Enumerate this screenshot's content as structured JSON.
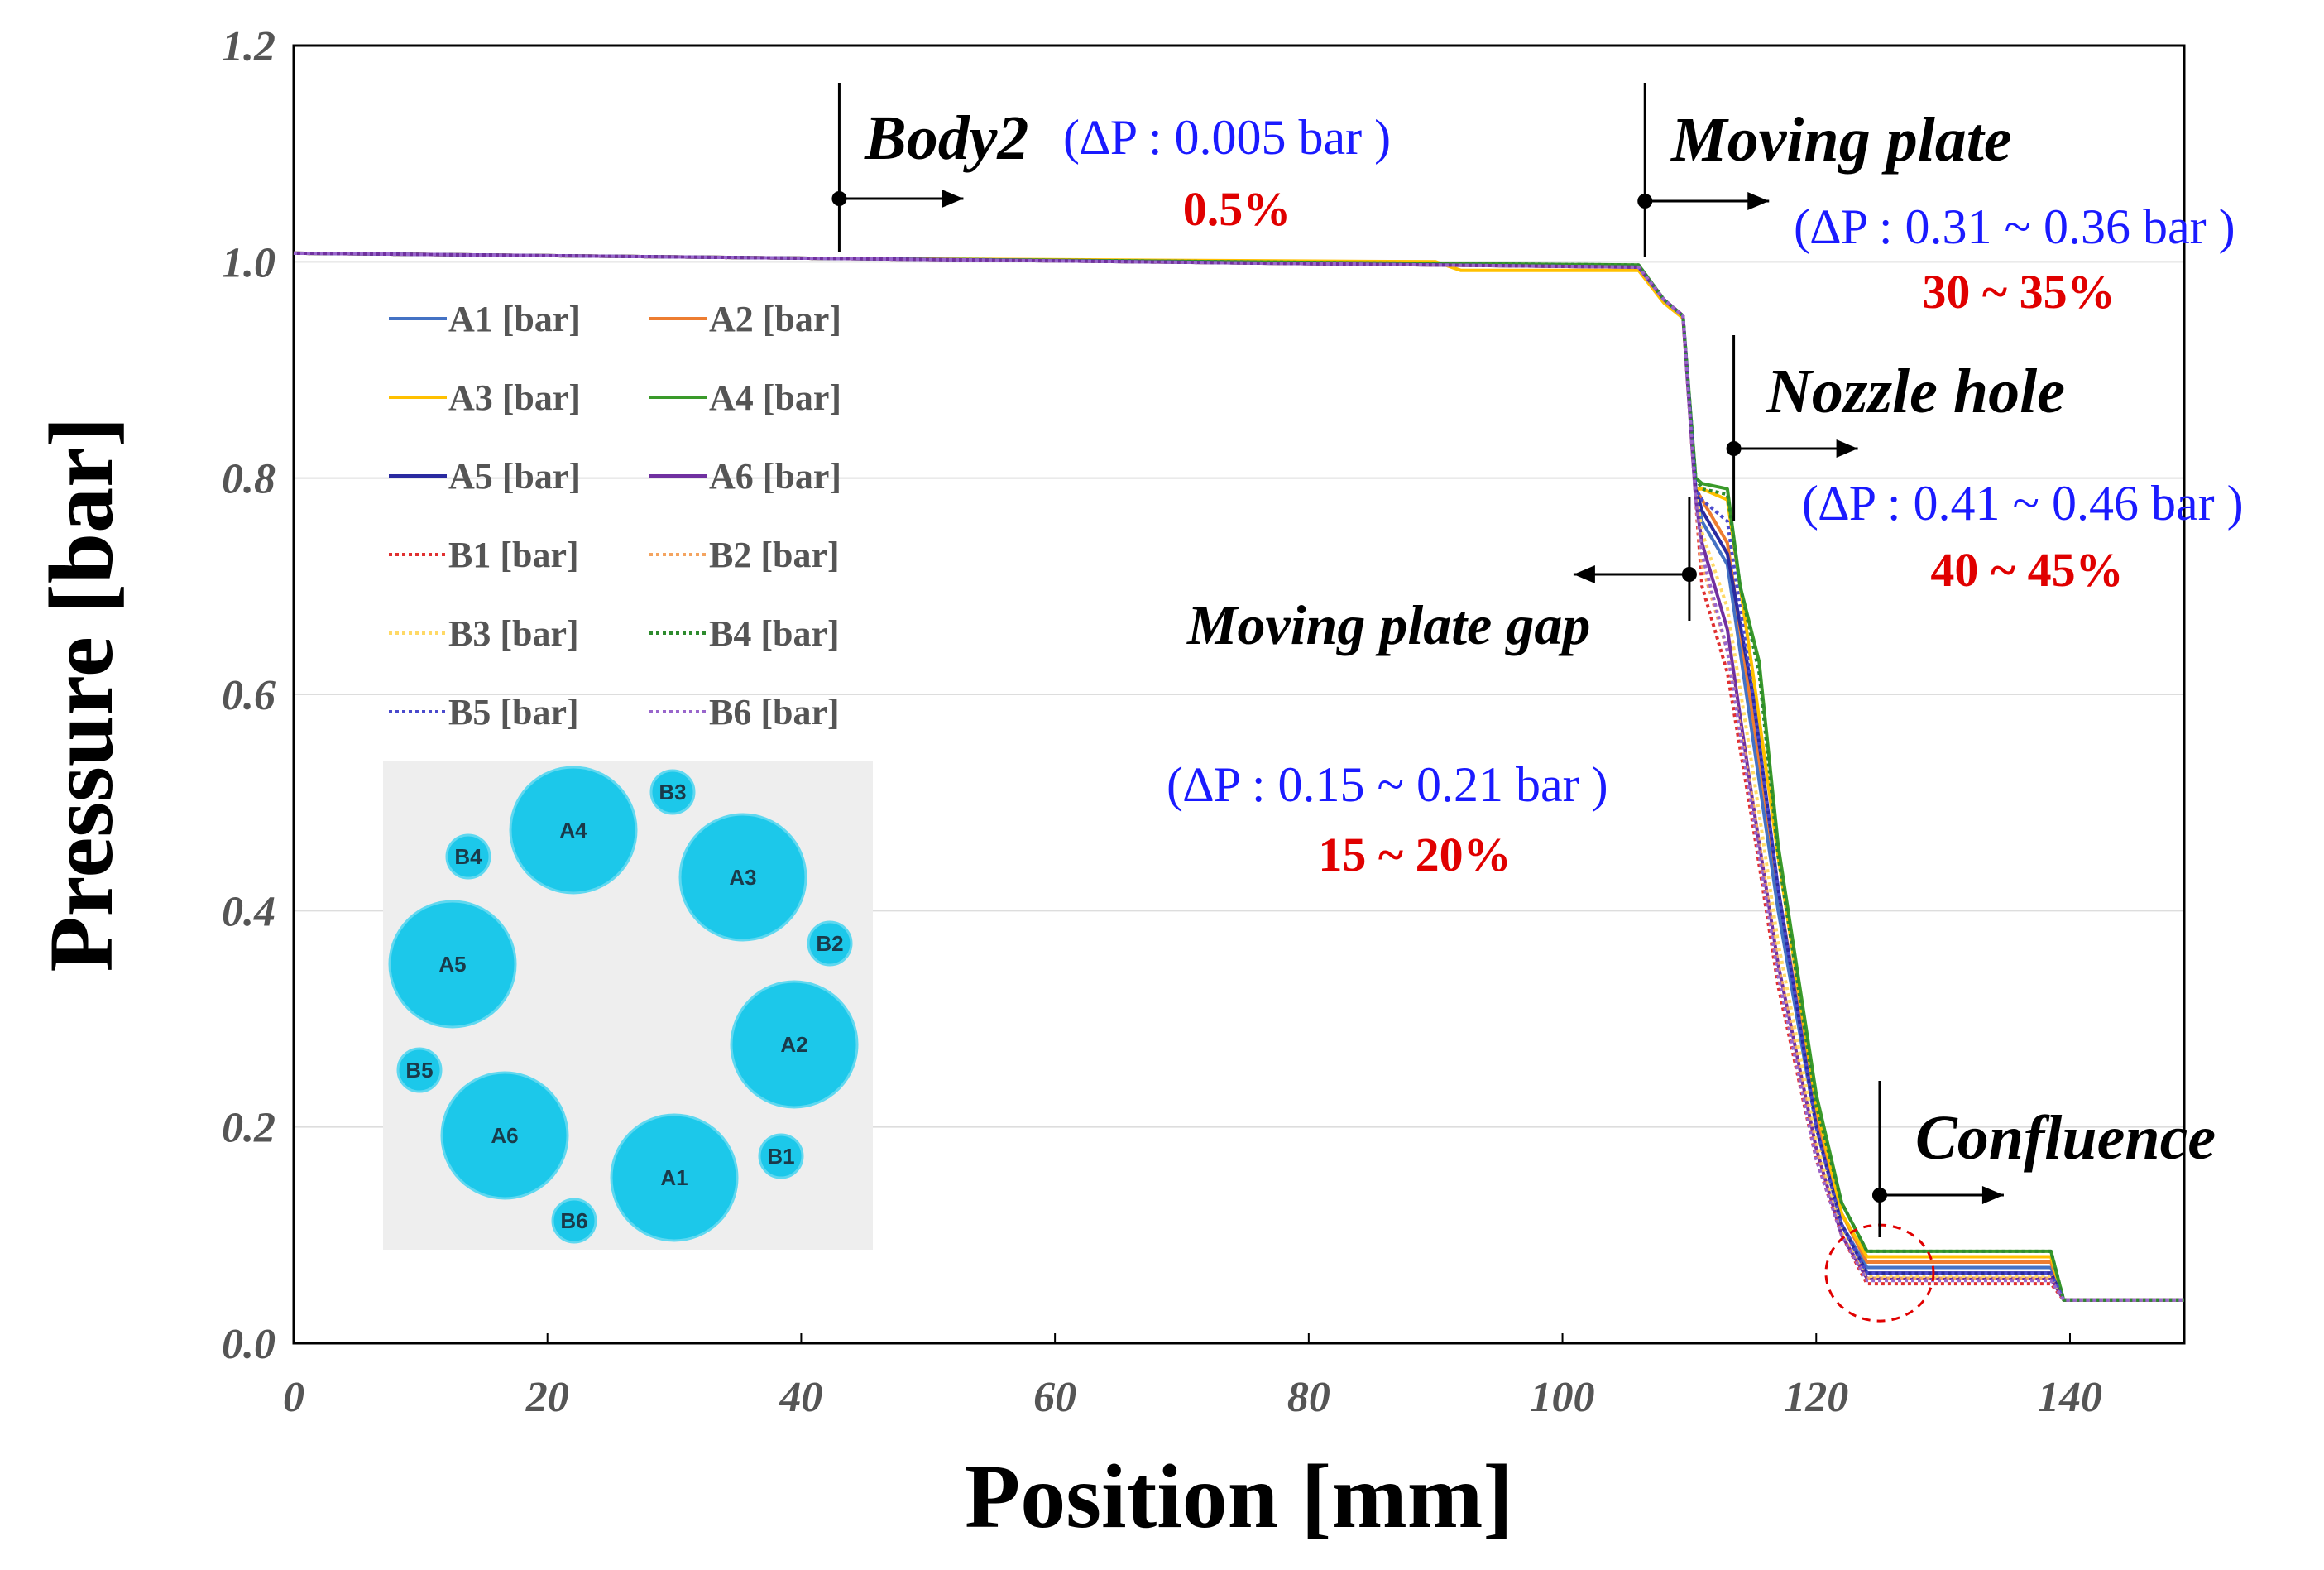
{
  "chart_data": {
    "type": "line",
    "xlabel": "Position [mm]",
    "ylabel": "Pressure [bar]",
    "xlim": [
      0,
      149
    ],
    "ylim": [
      0,
      1.2
    ],
    "x_ticks": [
      "0",
      "20",
      "40",
      "60",
      "80",
      "100",
      "120",
      "140"
    ],
    "y_ticks": [
      "0.0",
      "0.2",
      "0.4",
      "0.6",
      "0.8",
      "1.0",
      "1.2"
    ],
    "legend": [
      "A1 [bar]",
      "A2 [bar]",
      "A3 [bar]",
      "A4 [bar]",
      "A5 [bar]",
      "A6 [bar]",
      "B1 [bar]",
      "B2 [bar]",
      "B3 [bar]",
      "B4 [bar]",
      "B5 [bar]",
      "B6 [bar]"
    ],
    "series": [
      {
        "name": "A1 [bar]",
        "color": "#4472c4",
        "dash": false,
        "x": [
          0,
          43,
          106,
          108,
          109.5,
          110.5,
          111,
          113,
          115,
          117,
          120,
          122,
          124,
          138.5,
          139.5,
          149
        ],
        "y": [
          1.008,
          1.003,
          0.995,
          0.965,
          0.95,
          0.79,
          0.76,
          0.72,
          0.56,
          0.4,
          0.2,
          0.11,
          0.07,
          0.07,
          0.04,
          0.04
        ]
      },
      {
        "name": "A2 [bar]",
        "color": "#ed7d31",
        "dash": false,
        "x": [
          0,
          43,
          106,
          108,
          109.5,
          110.5,
          111,
          113,
          115,
          117,
          120,
          122,
          124,
          138.5,
          139.5,
          149
        ],
        "y": [
          1.008,
          1.003,
          0.995,
          0.965,
          0.95,
          0.79,
          0.78,
          0.74,
          0.58,
          0.42,
          0.21,
          0.12,
          0.075,
          0.075,
          0.04,
          0.04
        ]
      },
      {
        "name": "A3 [bar]",
        "color": "#ffc000",
        "dash": false,
        "x": [
          0,
          43,
          90,
          92,
          106,
          108,
          109.5,
          110.5,
          111,
          113,
          115,
          117,
          120,
          122,
          124,
          138.5,
          139.5,
          149
        ],
        "y": [
          1.008,
          1.003,
          1.0,
          0.992,
          0.992,
          0.962,
          0.948,
          0.79,
          0.79,
          0.78,
          0.62,
          0.45,
          0.22,
          0.12,
          0.08,
          0.08,
          0.04,
          0.04
        ]
      },
      {
        "name": "A4 [bar]",
        "color": "#3a9a2a",
        "dash": false,
        "x": [
          0,
          43,
          106,
          108,
          109.5,
          110.5,
          111,
          113,
          114,
          115.5,
          117,
          120,
          122,
          124,
          138.5,
          139.5,
          149
        ],
        "y": [
          1.008,
          1.003,
          0.997,
          0.965,
          0.95,
          0.8,
          0.795,
          0.79,
          0.7,
          0.63,
          0.46,
          0.23,
          0.13,
          0.085,
          0.085,
          0.04,
          0.04
        ]
      },
      {
        "name": "A5 [bar]",
        "color": "#2a2aa0",
        "dash": false,
        "x": [
          0,
          43,
          106,
          108,
          109.5,
          110.5,
          111,
          113,
          115,
          117,
          120,
          122,
          124,
          138.5,
          139.5,
          149
        ],
        "y": [
          1.008,
          1.003,
          0.995,
          0.965,
          0.95,
          0.79,
          0.77,
          0.73,
          0.6,
          0.42,
          0.2,
          0.11,
          0.065,
          0.065,
          0.04,
          0.04
        ]
      },
      {
        "name": "A6 [bar]",
        "color": "#7030a0",
        "dash": false,
        "x": [
          0,
          43,
          106,
          108,
          109.5,
          110.5,
          111,
          113,
          115,
          117,
          120,
          122,
          124,
          138.5,
          139.5,
          149
        ],
        "y": [
          1.008,
          1.003,
          0.995,
          0.965,
          0.95,
          0.78,
          0.74,
          0.66,
          0.5,
          0.35,
          0.18,
          0.1,
          0.06,
          0.06,
          0.04,
          0.04
        ]
      },
      {
        "name": "B1 [bar]",
        "color": "#e03030",
        "dash": true,
        "x": [
          0,
          43,
          106,
          108,
          109.5,
          110.5,
          111,
          113,
          115,
          117,
          120,
          122,
          124,
          138.5,
          139.5,
          149
        ],
        "y": [
          1.008,
          1.003,
          0.995,
          0.965,
          0.95,
          0.78,
          0.7,
          0.62,
          0.48,
          0.33,
          0.17,
          0.1,
          0.055,
          0.055,
          0.04,
          0.04
        ]
      },
      {
        "name": "B2 [bar]",
        "color": "#f4a460",
        "dash": true,
        "x": [
          0,
          43,
          106,
          108,
          109.5,
          110.5,
          111,
          113,
          115,
          117,
          120,
          122,
          124,
          138.5,
          139.5,
          149
        ],
        "y": [
          1.008,
          1.003,
          0.995,
          0.965,
          0.95,
          0.78,
          0.72,
          0.64,
          0.5,
          0.35,
          0.18,
          0.1,
          0.06,
          0.06,
          0.04,
          0.04
        ]
      },
      {
        "name": "B3 [bar]",
        "color": "#ffd966",
        "dash": true,
        "x": [
          0,
          43,
          106,
          108,
          109.5,
          110.5,
          111,
          113,
          115,
          117,
          120,
          122,
          124,
          138.5,
          139.5,
          149
        ],
        "y": [
          1.008,
          1.003,
          0.995,
          0.965,
          0.95,
          0.79,
          0.75,
          0.68,
          0.53,
          0.37,
          0.19,
          0.105,
          0.062,
          0.062,
          0.04,
          0.04
        ]
      },
      {
        "name": "B4 [bar]",
        "color": "#2e8b2e",
        "dash": true,
        "x": [
          0,
          43,
          106,
          108,
          109.5,
          110.5,
          111,
          113,
          114,
          115.5,
          117,
          120,
          122,
          124,
          138.5,
          139.5,
          149
        ],
        "y": [
          1.008,
          1.003,
          0.997,
          0.965,
          0.95,
          0.8,
          0.79,
          0.785,
          0.7,
          0.62,
          0.45,
          0.22,
          0.13,
          0.085,
          0.085,
          0.04,
          0.04
        ]
      },
      {
        "name": "B5 [bar]",
        "color": "#4a4acd",
        "dash": true,
        "x": [
          0,
          43,
          106,
          108,
          109.5,
          110.5,
          111,
          113,
          115,
          117,
          120,
          122,
          124,
          138.5,
          139.5,
          149
        ],
        "y": [
          1.008,
          1.003,
          0.995,
          0.965,
          0.95,
          0.79,
          0.78,
          0.76,
          0.6,
          0.42,
          0.2,
          0.11,
          0.065,
          0.065,
          0.04,
          0.04
        ]
      },
      {
        "name": "B6 [bar]",
        "color": "#9966cc",
        "dash": true,
        "x": [
          0,
          43,
          106,
          108,
          109.5,
          110.5,
          111,
          113,
          115,
          117,
          120,
          122,
          124,
          138.5,
          139.5,
          149
        ],
        "y": [
          1.008,
          1.003,
          0.995,
          0.965,
          0.95,
          0.78,
          0.73,
          0.64,
          0.49,
          0.34,
          0.17,
          0.1,
          0.058,
          0.058,
          0.04,
          0.04
        ]
      }
    ],
    "annotations": [
      {
        "id": "body2",
        "title": "Body2",
        "delta": "(∆P : 0.005 bar )",
        "percent": "0.5%",
        "at_x": 43,
        "at_y": 1.06
      },
      {
        "id": "moving_plate",
        "title": "Moving plate",
        "delta": "(∆P : 0.31 ~ 0.36 bar )",
        "percent": "30 ~ 35%",
        "at_x": 106.5,
        "at_y": 1.06
      },
      {
        "id": "nozzle_hole",
        "title": "Nozzle hole",
        "delta": "(∆P : 0.41 ~ 0.46 bar )",
        "percent": "40 ~ 45%",
        "at_x": 113.5,
        "at_y": 0.83
      },
      {
        "id": "moving_plate_gap",
        "title": "Moving plate gap",
        "delta": "(∆P : 0.15 ~ 0.21 bar )",
        "percent": "15 ~ 20%",
        "at_x": 110,
        "at_y": 0.71
      },
      {
        "id": "confluence",
        "title": "Confluence",
        "at_x": 125,
        "at_y": 0.14
      }
    ],
    "highlight": {
      "x": 125,
      "y": 0.065
    }
  },
  "inset": {
    "circles": [
      {
        "label": "A1",
        "size": "large"
      },
      {
        "label": "A2",
        "size": "large"
      },
      {
        "label": "A3",
        "size": "large"
      },
      {
        "label": "A4",
        "size": "large"
      },
      {
        "label": "A5",
        "size": "large"
      },
      {
        "label": "A6",
        "size": "large"
      },
      {
        "label": "B1",
        "size": "small"
      },
      {
        "label": "B2",
        "size": "small"
      },
      {
        "label": "B3",
        "size": "small"
      },
      {
        "label": "B4",
        "size": "small"
      },
      {
        "label": "B5",
        "size": "small"
      },
      {
        "label": "B6",
        "size": "small"
      }
    ]
  }
}
